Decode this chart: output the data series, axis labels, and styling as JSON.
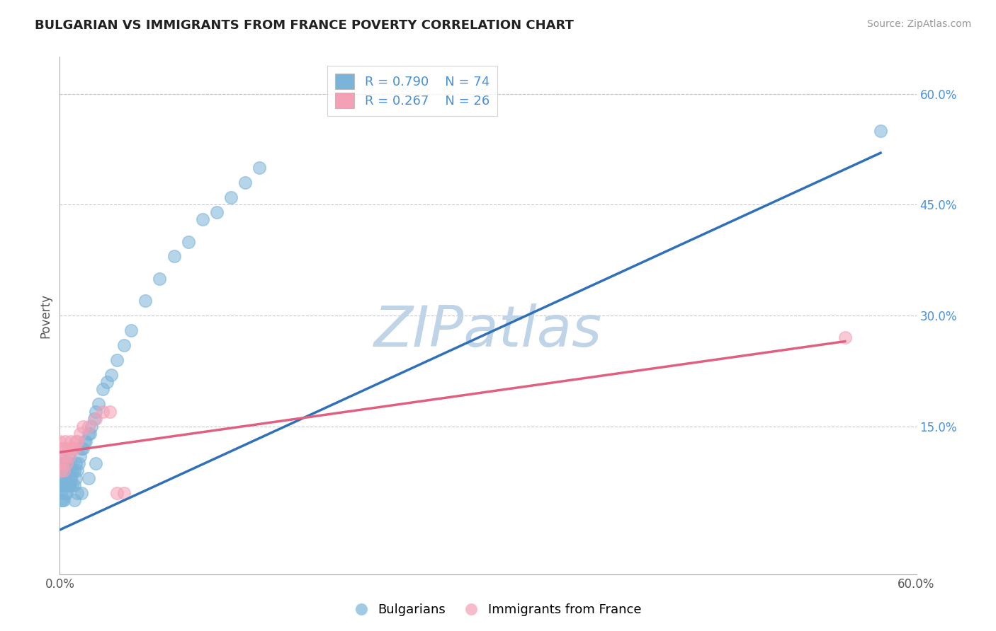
{
  "title": "BULGARIAN VS IMMIGRANTS FROM FRANCE POVERTY CORRELATION CHART",
  "source": "Source: ZipAtlas.com",
  "ylabel": "Poverty",
  "xlim": [
    0.0,
    0.6
  ],
  "ylim": [
    -0.05,
    0.65
  ],
  "right_yticks": [
    0.15,
    0.3,
    0.45,
    0.6
  ],
  "right_yticklabels": [
    "15.0%",
    "30.0%",
    "45.0%",
    "60.0%"
  ],
  "xtick_positions": [
    0.0,
    0.2,
    0.4,
    0.6
  ],
  "xticklabels": [
    "0.0%",
    "",
    "",
    "60.0%"
  ],
  "legend_label1": "Bulgarians",
  "legend_label2": "Immigrants from France",
  "blue_color": "#7ab4d8",
  "pink_color": "#f4a0b5",
  "blue_line_color": "#3070b8",
  "pink_line_color": "#e06080",
  "watermark": "ZIPatlas",
  "watermark_color": "#c0d4e8",
  "grid_color": "#c8c8c8",
  "blue_scatter_x": [
    0.0,
    0.0,
    0.0,
    0.001,
    0.001,
    0.001,
    0.001,
    0.002,
    0.002,
    0.002,
    0.003,
    0.003,
    0.003,
    0.004,
    0.004,
    0.004,
    0.005,
    0.005,
    0.005,
    0.006,
    0.006,
    0.007,
    0.007,
    0.007,
    0.008,
    0.008,
    0.009,
    0.009,
    0.01,
    0.01,
    0.011,
    0.011,
    0.012,
    0.013,
    0.014,
    0.015,
    0.016,
    0.017,
    0.018,
    0.02,
    0.021,
    0.022,
    0.024,
    0.025,
    0.027,
    0.03,
    0.033,
    0.036,
    0.04,
    0.045,
    0.05,
    0.06,
    0.07,
    0.08,
    0.09,
    0.1,
    0.11,
    0.12,
    0.13,
    0.14,
    0.001,
    0.002,
    0.003,
    0.004,
    0.005,
    0.006,
    0.007,
    0.008,
    0.01,
    0.012,
    0.015,
    0.02,
    0.025,
    0.575
  ],
  "blue_scatter_y": [
    0.07,
    0.09,
    0.1,
    0.06,
    0.08,
    0.1,
    0.11,
    0.07,
    0.09,
    0.1,
    0.07,
    0.08,
    0.1,
    0.07,
    0.08,
    0.09,
    0.07,
    0.09,
    0.1,
    0.08,
    0.1,
    0.07,
    0.09,
    0.11,
    0.08,
    0.1,
    0.07,
    0.09,
    0.07,
    0.09,
    0.08,
    0.1,
    0.09,
    0.1,
    0.11,
    0.12,
    0.12,
    0.13,
    0.13,
    0.14,
    0.14,
    0.15,
    0.16,
    0.17,
    0.18,
    0.2,
    0.21,
    0.22,
    0.24,
    0.26,
    0.28,
    0.32,
    0.35,
    0.38,
    0.4,
    0.43,
    0.44,
    0.46,
    0.48,
    0.5,
    0.05,
    0.05,
    0.05,
    0.06,
    0.06,
    0.07,
    0.07,
    0.08,
    0.05,
    0.06,
    0.06,
    0.08,
    0.1,
    0.55
  ],
  "pink_scatter_x": [
    0.0,
    0.0,
    0.001,
    0.001,
    0.002,
    0.002,
    0.003,
    0.004,
    0.004,
    0.005,
    0.006,
    0.007,
    0.008,
    0.009,
    0.01,
    0.011,
    0.012,
    0.014,
    0.016,
    0.02,
    0.025,
    0.03,
    0.035,
    0.04,
    0.045,
    0.55
  ],
  "pink_scatter_y": [
    0.1,
    0.13,
    0.09,
    0.12,
    0.1,
    0.12,
    0.09,
    0.11,
    0.13,
    0.1,
    0.12,
    0.11,
    0.13,
    0.12,
    0.12,
    0.13,
    0.13,
    0.14,
    0.15,
    0.15,
    0.16,
    0.17,
    0.17,
    0.06,
    0.06,
    0.27
  ],
  "blue_line_x": [
    0.0,
    0.575
  ],
  "blue_line_y": [
    0.01,
    0.52
  ],
  "pink_line_x": [
    0.0,
    0.55
  ],
  "pink_line_y": [
    0.115,
    0.265
  ]
}
